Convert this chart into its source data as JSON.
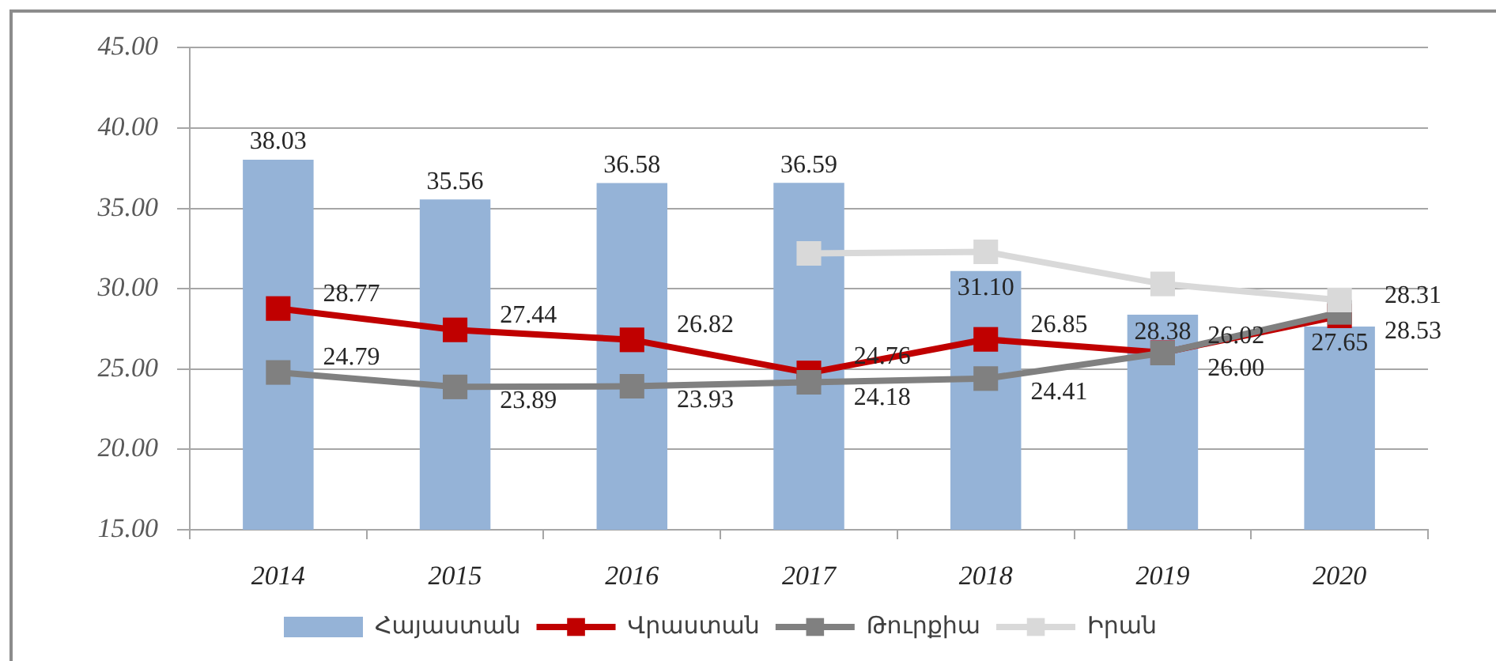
{
  "chart_data": {
    "type": "bar",
    "categories": [
      "2014",
      "2015",
      "2016",
      "2017",
      "2018",
      "2019",
      "2020"
    ],
    "series": [
      {
        "name": "Հայաստան",
        "color": "#95b3d7",
        "values": [
          38.03,
          35.56,
          36.58,
          36.59,
          31.1,
          28.38,
          27.65
        ],
        "value_labels": [
          "38.03",
          "35.56",
          "36.58",
          "36.59",
          "31.10",
          "28.38",
          "27.65"
        ]
      },
      {
        "name": "Վրաստան",
        "type": "line",
        "color": "#c00000",
        "values": [
          28.77,
          27.44,
          26.82,
          24.76,
          26.85,
          26.02,
          28.31
        ],
        "value_labels": [
          "28.77",
          "27.44",
          "26.82",
          "24.76",
          "26.85",
          "26.02",
          "28.31"
        ]
      },
      {
        "name": "Թուրքիա",
        "type": "line",
        "color": "#808080",
        "values": [
          24.79,
          23.89,
          23.93,
          24.18,
          24.41,
          26.0,
          28.53
        ],
        "value_labels": [
          "24.79",
          "23.89",
          "23.93",
          "24.18",
          "24.41",
          "26.00",
          "28.53"
        ]
      },
      {
        "name": "Իրան",
        "type": "line",
        "color": "#d9d9d9",
        "values": [
          null,
          null,
          null,
          32.2,
          32.3,
          30.3,
          29.3
        ]
      }
    ],
    "ylim": [
      15,
      45
    ],
    "yticks": [
      {
        "value": 15,
        "label": "15.00"
      },
      {
        "value": 20,
        "label": "20.00"
      },
      {
        "value": 25,
        "label": "25.00"
      },
      {
        "value": 30,
        "label": "30.00"
      },
      {
        "value": 35,
        "label": "35.00"
      },
      {
        "value": 40,
        "label": "40.00"
      },
      {
        "value": 45,
        "label": "45.00"
      }
    ],
    "grid": "y",
    "legend": "bottom",
    "marker": "square"
  }
}
